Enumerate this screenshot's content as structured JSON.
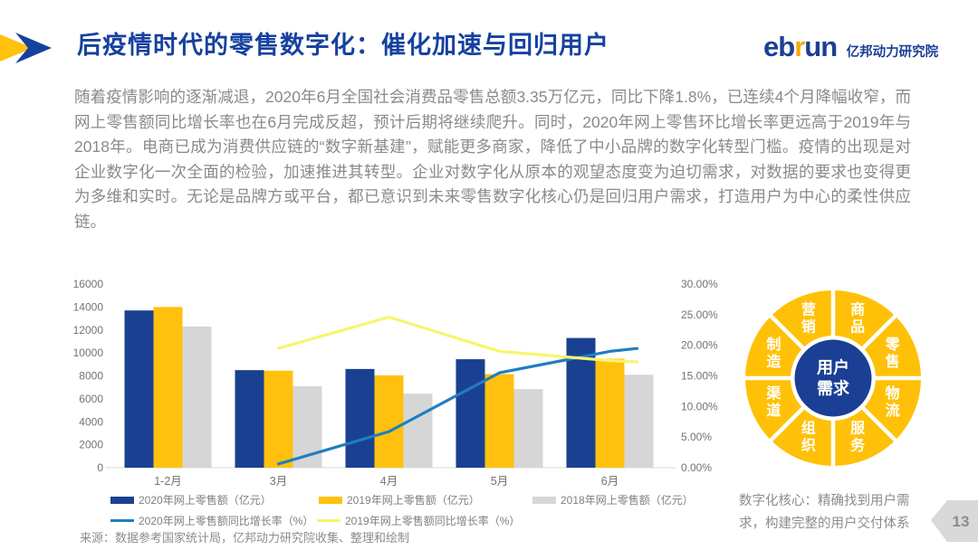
{
  "header": {
    "title": "后疫情时代的零售数字化：催化加速与回归用户",
    "logo": {
      "word_pre": "eb",
      "word_r": "r",
      "word_post": "un",
      "name": "亿邦动力研究院"
    },
    "marker_colors": {
      "yellow_arrow": "#FFC20E",
      "blue_arrow": "#16419F"
    }
  },
  "body": {
    "paragraph": "随着疫情影响的逐渐减退，2020年6月全国社会消费品零售总额3.35万亿元，同比下降1.8%，已连续4个月降幅收窄，而网上零售额同比增长率也在6月完成反超，预计后期将继续爬升。同时，2020年网上零售环比增长率更远高于2019年与2018年。电商已成为消费供应链的“数字新基建”，赋能更多商家，降低了中小品牌的数字化转型门槛。疫情的出现是对企业数字化一次全面的检验，加速推进其转型。企业对数字化从原本的观望态度变为迫切需求，对数据的要求也变得更为多维和实时。无论是品牌方或平台，都已意识到未来零售数字化核心仍是回归用户需求，打造用户为中心的柔性供应链。"
  },
  "chart_data": {
    "type": "bar+line",
    "categories": [
      "1-2月",
      "3月",
      "4月",
      "5月",
      "6月"
    ],
    "bar_series": [
      {
        "name": "2020年网上零售额（亿元）",
        "color": "#1A4191",
        "values": [
          13700,
          8500,
          8600,
          9450,
          11300
        ]
      },
      {
        "name": "2019年网上零售额（亿元）",
        "color": "#FFC10D",
        "values": [
          14000,
          8450,
          8050,
          8150,
          9500
        ]
      },
      {
        "name": "2018年网上零售额（亿元）",
        "color": "#D6D6D6",
        "values": [
          12300,
          7100,
          6450,
          6850,
          8100
        ]
      }
    ],
    "line_series": [
      {
        "name": "2020年网上零售额同比增长率（%）",
        "color": "#1F7EC2",
        "values": [
          null,
          0.6,
          5.9,
          15.5,
          19.0
        ]
      },
      {
        "name": "2019年网上零售额同比增长率（%）",
        "color": "#F7F56E",
        "values": [
          null,
          19.5,
          24.6,
          19.0,
          17.5
        ]
      }
    ],
    "left_axis": {
      "min": 0,
      "max": 16000,
      "step": 2000
    },
    "right_axis": {
      "min": 0,
      "max": 30,
      "step": 5,
      "format": "percent2"
    },
    "grid": false,
    "legend_position": "bottom"
  },
  "diagram": {
    "segments": [
      "商品",
      "零售",
      "物流",
      "服务",
      "组织",
      "渠道",
      "制造",
      "营销"
    ],
    "center_lines": [
      "用户",
      "需求"
    ],
    "ring_color": "#FFC107",
    "center_color": "#1B3F94",
    "caption": "数字化核心：精确找到用户需求，构建完整的用户交付体系"
  },
  "footer": {
    "source": "来源：数据参考国家统计局，亿邦动力研究院收集、整理和绘制",
    "page": "13"
  }
}
